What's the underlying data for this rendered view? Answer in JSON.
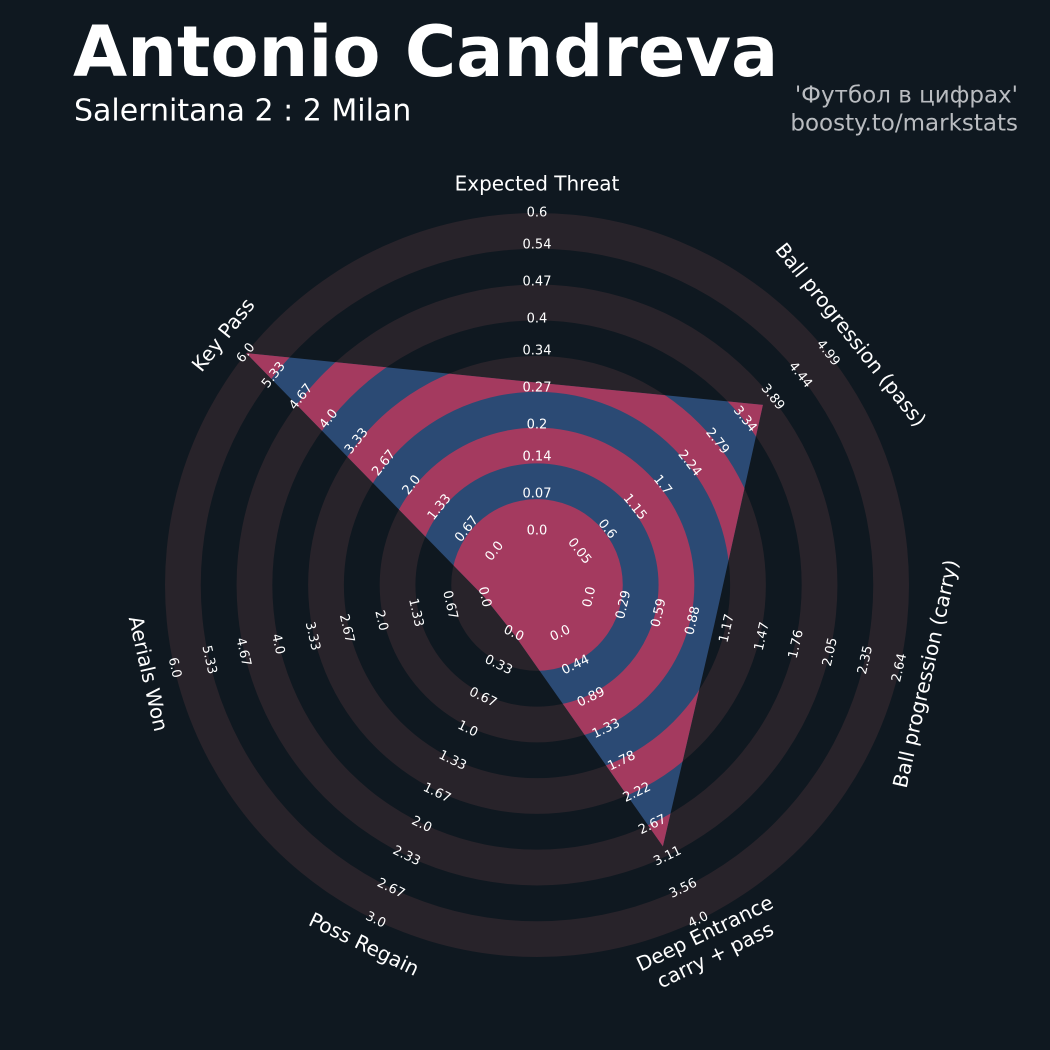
{
  "chart_data": {
    "type": "radar",
    "title": "Antonio Candreva",
    "subtitle": "Salernitana 2 : 2 Milan",
    "annotations": [
      "'Футбол в цифрах'",
      "boosty.to/markstats"
    ],
    "categories": [
      "Expected Threat",
      "Ball progression (pass)",
      "Ball progression (carry)",
      [
        "Deep Entrance",
        "carry + pass"
      ],
      "Poss Regain",
      "Aerials Won",
      "Key Pass"
    ],
    "axes": [
      {
        "lim": [
          0,
          0.6
        ],
        "ticks": [
          {
            "value": 0,
            "label": "0.0"
          },
          0.07,
          0.14,
          0.2,
          0.27,
          0.34,
          0.4,
          0.47,
          0.54,
          0.6
        ]
      },
      {
        "lim": [
          0.05,
          4.99
        ],
        "ticks": [
          0.05,
          0.6,
          1.15,
          1.7,
          2.24,
          2.79,
          3.34,
          3.89,
          4.44,
          4.99
        ]
      },
      {
        "lim": [
          0,
          2.64
        ],
        "ticks": [
          {
            "value": 0,
            "label": "0.0"
          },
          0.29,
          0.59,
          0.88,
          1.17,
          1.47,
          1.76,
          2.05,
          2.35,
          2.64
        ]
      },
      {
        "lim": [
          0,
          4
        ],
        "ticks": [
          {
            "value": 0,
            "label": "0.0"
          },
          0.44,
          0.89,
          1.33,
          1.78,
          2.22,
          2.67,
          3.11,
          3.56,
          {
            "value": 4,
            "label": "4.0"
          }
        ]
      },
      {
        "lim": [
          0,
          3
        ],
        "ticks": [
          {
            "value": 0,
            "label": "0.0"
          },
          0.33,
          0.67,
          {
            "value": 1,
            "label": "1.0"
          },
          1.33,
          1.67,
          {
            "value": 2,
            "label": "2.0"
          },
          2.33,
          2.67,
          {
            "value": 3,
            "label": "3.0"
          }
        ]
      },
      {
        "lim": [
          0,
          6
        ],
        "ticks": [
          {
            "value": 0,
            "label": "0.0"
          },
          0.67,
          1.33,
          {
            "value": 2,
            "label": "2.0"
          },
          2.67,
          3.33,
          {
            "value": 4,
            "label": "4.0"
          },
          4.67,
          5.33,
          {
            "value": 6,
            "label": "6.0"
          }
        ]
      },
      {
        "lim": [
          0,
          6
        ],
        "ticks": [
          {
            "value": 0,
            "label": "0.0"
          },
          0.67,
          1.33,
          {
            "value": 2,
            "label": "2.0"
          },
          2.67,
          3.33,
          {
            "value": 4,
            "label": "4.0"
          },
          4.67,
          5.33,
          {
            "value": 6,
            "label": "6.0"
          }
        ]
      }
    ],
    "series": [
      {
        "values": [
          0.28,
          3.7,
          1.06,
          2.97,
          0,
          0,
          6
        ],
        "color": "#2b4a74",
        "highlight_color": "#a43a5f"
      }
    ],
    "ring_color": "#28232a"
  }
}
